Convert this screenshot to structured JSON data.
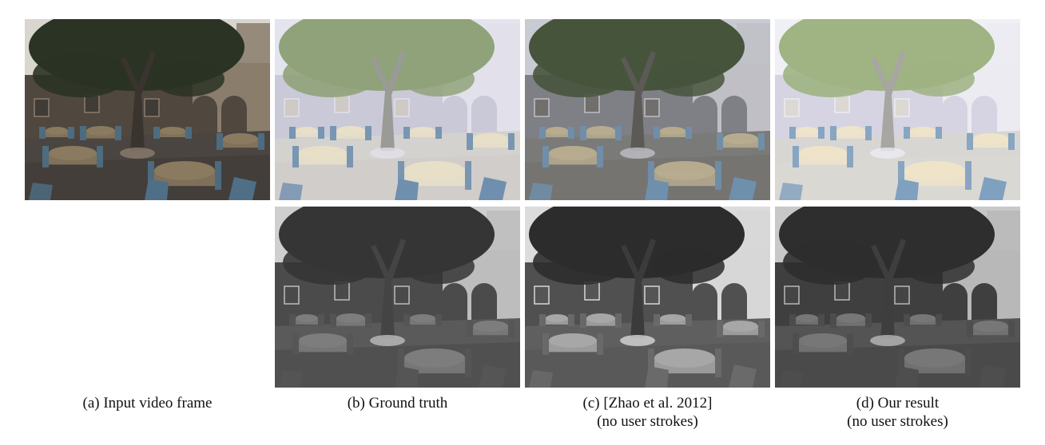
{
  "figure": {
    "captions": [
      {
        "id": "a",
        "lines": [
          "(a) Input video frame"
        ]
      },
      {
        "id": "b",
        "lines": [
          "(b) Ground truth"
        ]
      },
      {
        "id": "c",
        "lines": [
          "(c) [Zhao et al. 2012]",
          "(no user strokes)"
        ]
      },
      {
        "id": "d",
        "lines": [
          "(d) Our result",
          "(no user strokes)"
        ]
      }
    ]
  },
  "panels": {
    "input": {
      "sky": "#d9d6cf",
      "wall": "#50473f",
      "arch": "#8a7d6c",
      "ground": "#4a4540",
      "tree": "#2a3324",
      "trunk": "#3a342e",
      "table": "#8a7a5f",
      "chair": "#4f6f86",
      "floor_tone": "#3f3b37"
    },
    "gt_reflectance": {
      "sky": "#e3e4ee",
      "wall": "#c9c9d8",
      "arch": "#e2e0ea",
      "ground": "#d4d2cf",
      "tree": "#90a27a",
      "trunk": "#9a9a96",
      "table": "#e8dfc9",
      "chair": "#6f8fae",
      "floor_tone": "#cfcac6"
    },
    "zhao_reflectance": {
      "sky": "#c9cbd3",
      "wall": "#7f7f86",
      "arch": "#c0bfc5",
      "ground": "#7a7a78",
      "tree": "#47543c",
      "trunk": "#5c5a56",
      "table": "#b7ab8f",
      "chair": "#6f90ad",
      "floor_tone": "#716f6c"
    },
    "our_reflectance": {
      "sky": "#eef0f6",
      "wall": "#d6d4e2",
      "arch": "#ecebf2",
      "ground": "#d8d6d3",
      "tree": "#9fb383",
      "trunk": "#a8a6a2",
      "table": "#eee4ca",
      "chair": "#7fa0bf",
      "floor_tone": "#dcd8d4"
    },
    "gt_shading": {
      "sky": "#cfcfcf",
      "wall": "#4b4b4b",
      "arch": "#bdbdbd",
      "ground": "#5a5a5a",
      "tree": "#353535",
      "trunk": "#444444",
      "table": "#7d7d7d",
      "chair": "#555555",
      "floor_tone": "#4a4a4a"
    },
    "zhao_shading": {
      "sky": "#dcdcdc",
      "wall": "#505050",
      "arch": "#d7d7d7",
      "ground": "#5f5f5f",
      "tree": "#2c2c2c",
      "trunk": "#3b3b3b",
      "table": "#a7a7a7",
      "chair": "#6a6a6a",
      "floor_tone": "#555555"
    },
    "our_shading": {
      "sky": "#c8c8c8",
      "wall": "#3f3f3f",
      "arch": "#b8b8b8",
      "ground": "#545454",
      "tree": "#2e2e2e",
      "trunk": "#3e3e3e",
      "table": "#777777",
      "chair": "#4e4e4e",
      "floor_tone": "#454545"
    }
  }
}
